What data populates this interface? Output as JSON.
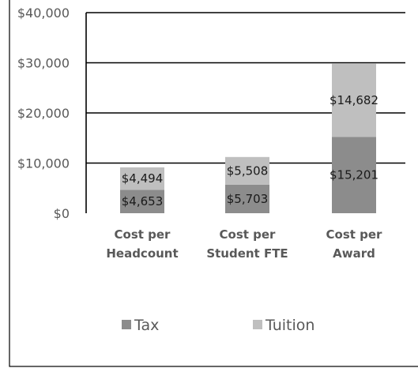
{
  "chart_data": {
    "type": "bar",
    "stacked": true,
    "categories": [
      "Cost per Headcount",
      "Cost per Student FTE",
      "Cost per Award"
    ],
    "category_lines": [
      [
        "Cost per",
        "Headcount"
      ],
      [
        "Cost per",
        "Student FTE"
      ],
      [
        "Cost per",
        "Award"
      ]
    ],
    "series": [
      {
        "name": "Tax",
        "values": [
          4653,
          5703,
          15201
        ],
        "labels": [
          "$4,653",
          "$5,703",
          "$15,201"
        ],
        "color": "#8c8c8c"
      },
      {
        "name": "Tuition",
        "values": [
          4494,
          5508,
          14682
        ],
        "labels": [
          "$4,494",
          "$5,508",
          "$14,682"
        ],
        "color": "#bfbfbf"
      }
    ],
    "y_ticks": [
      "$0",
      "$10,000",
      "$20,000",
      "$30,000",
      "$40,000"
    ],
    "ylim": [
      0,
      40000
    ],
    "grid": true,
    "legend_position": "bottom",
    "title": "",
    "xlabel": "",
    "ylabel": ""
  }
}
